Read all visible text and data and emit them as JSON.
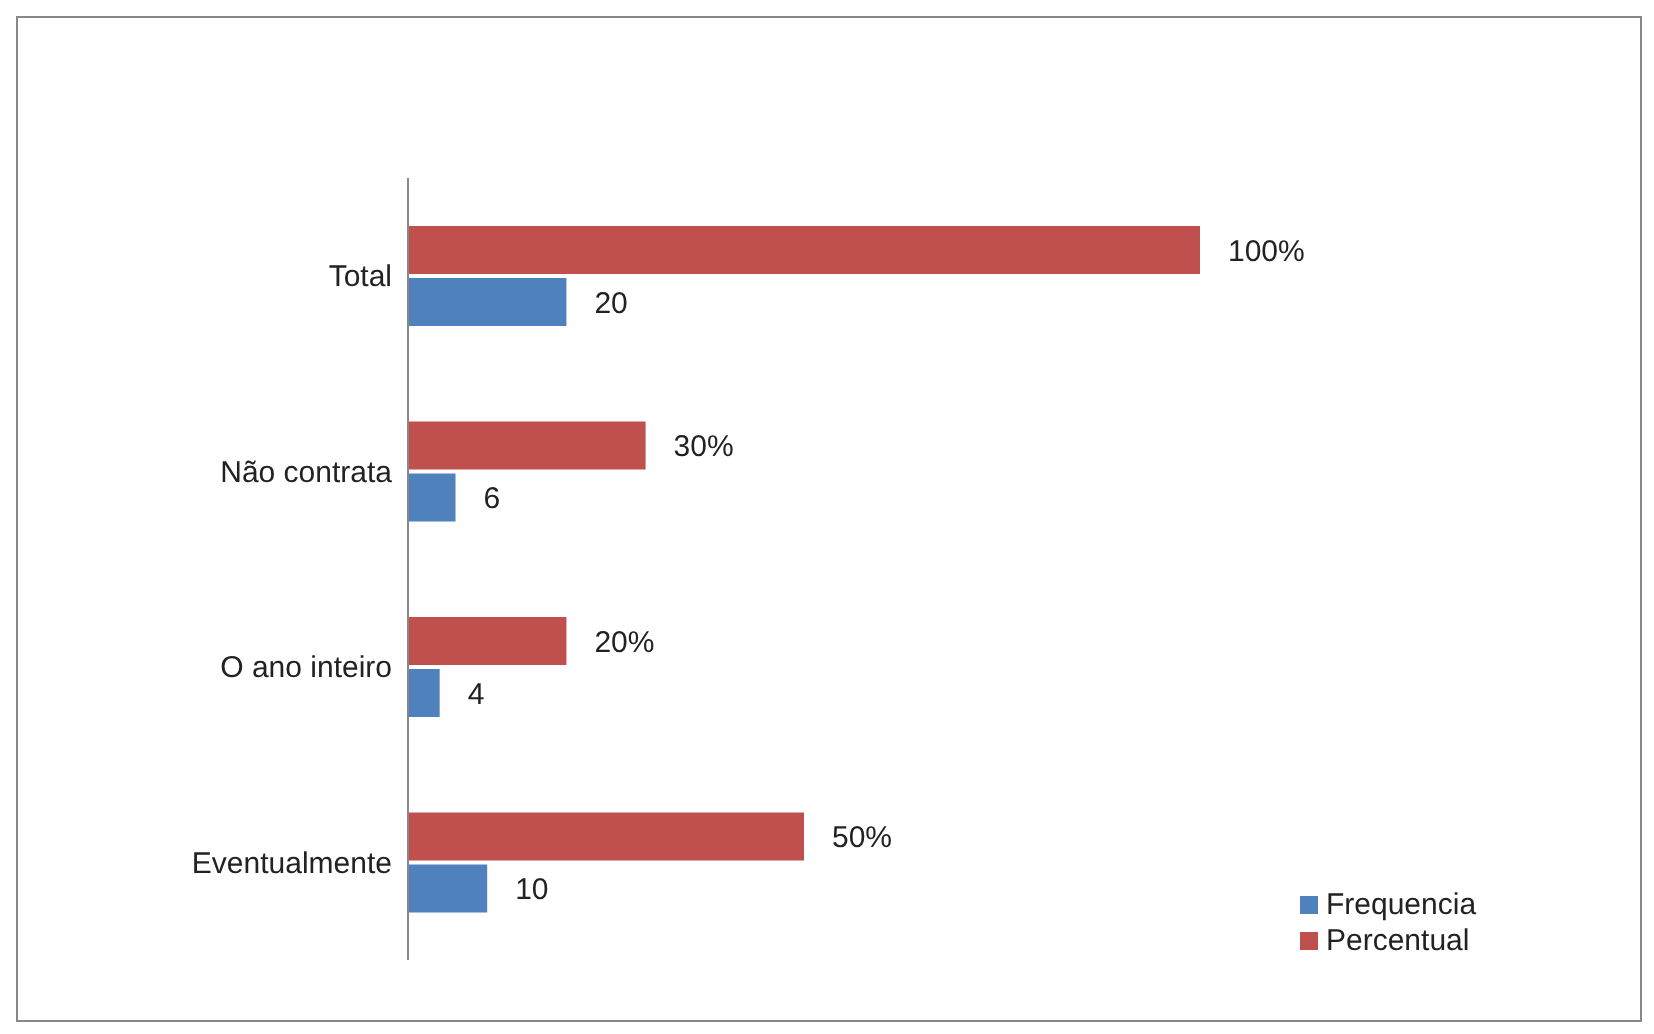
{
  "chart_data": {
    "type": "bar",
    "orientation": "horizontal",
    "categories": [
      "Total",
      "Não contrata",
      "O ano inteiro",
      "Eventualmente"
    ],
    "series": [
      {
        "name": "Percentual",
        "color": "#c0504d",
        "values": [
          100,
          30,
          20,
          50
        ],
        "value_labels": [
          "100%",
          "30%",
          "20%",
          "50%"
        ]
      },
      {
        "name": "Frequencia",
        "color": "#4f81bd",
        "values": [
          20,
          6,
          4,
          10
        ],
        "value_labels": [
          "20",
          "6",
          "4",
          "10"
        ]
      }
    ],
    "legend": "bottom right",
    "grid": false
  }
}
